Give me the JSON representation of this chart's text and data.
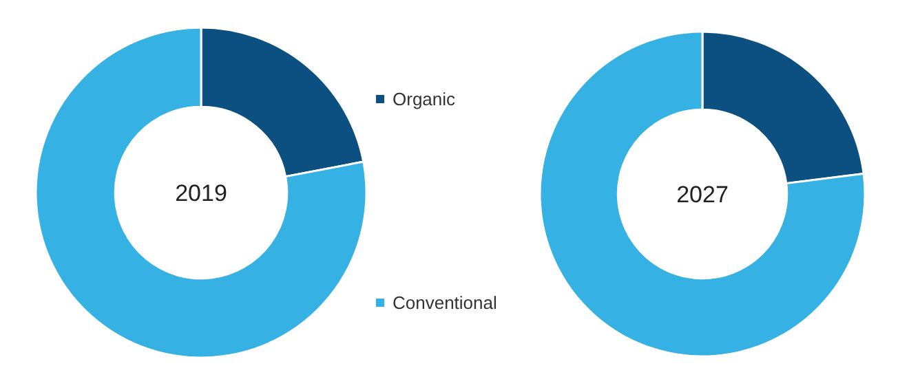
{
  "chart_data": [
    {
      "type": "donut",
      "title": "2019",
      "categories": [
        "Organic",
        "Conventional"
      ],
      "values": [
        22,
        78
      ],
      "colors": [
        "#0b5081",
        "#35b1e4"
      ],
      "legend": "right"
    },
    {
      "type": "donut",
      "title": "2027",
      "categories": [
        null,
        null
      ],
      "values": [
        23,
        77
      ],
      "colors": [
        "#0b5081",
        "#35b1e4"
      ]
    }
  ]
}
